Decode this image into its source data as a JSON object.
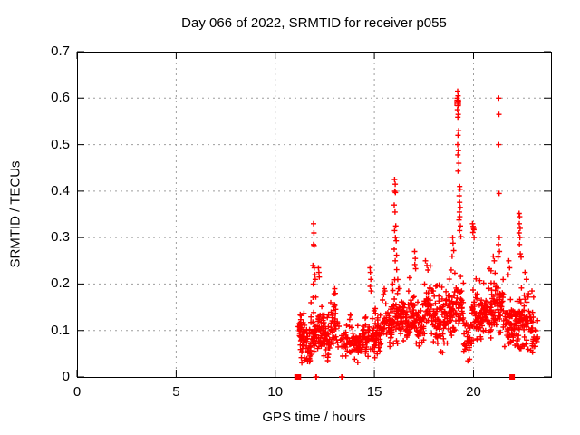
{
  "title": "Day 066 of 2022, SRMTID for receiver p055",
  "xlabel": "GPS time / hours",
  "ylabel": "SRMTID / TECUs",
  "chart_data": {
    "type": "scatter",
    "title": "Day 066 of 2022, SRMTID for receiver p055",
    "xlabel": "GPS time / hours",
    "ylabel": "SRMTID / TECUs",
    "marker": "plus",
    "marker_color": "#ff0000",
    "grid": true,
    "grid_style": "dotted",
    "grid_color": "#9e9e9e",
    "background": "#ffffff",
    "xlim": [
      0,
      23.91
    ],
    "ylim": [
      0,
      0.7
    ],
    "xticks": [
      0,
      5,
      10,
      15,
      20
    ],
    "yticks": [
      0,
      0.1,
      0.2,
      0.3,
      0.4,
      0.5,
      0.6,
      0.7
    ],
    "xtick_labels": [
      "0",
      "5",
      "10",
      "15",
      "20"
    ],
    "ytick_labels": [
      "0",
      "0.1",
      "0.2",
      "0.3",
      "0.4",
      "0.5",
      "0.6",
      "0.7"
    ],
    "data_extent_note": "no data before hour 11.1; dense cloud of + markers from ~11.2 to ~23.3 hours, mostly 0.03-0.25 TECUs, with narrow spikes listed in outlier_points",
    "outlier_points": [
      [
        11.9,
        0.24
      ],
      [
        11.92,
        0.2
      ],
      [
        11.93,
        0.33
      ],
      [
        11.93,
        0.285
      ],
      [
        11.95,
        0.31
      ],
      [
        11.96,
        0.283
      ],
      [
        11.97,
        0.235
      ],
      [
        12.0,
        0.22
      ],
      [
        12.02,
        0.21
      ],
      [
        12.18,
        0.235
      ],
      [
        12.2,
        0.225
      ],
      [
        12.22,
        0.215
      ],
      [
        13.0,
        0.19
      ],
      [
        13.03,
        0.18
      ],
      [
        14.78,
        0.235
      ],
      [
        14.8,
        0.225
      ],
      [
        14.82,
        0.21
      ],
      [
        14.79,
        0.195
      ],
      [
        14.83,
        0.185
      ],
      [
        15.5,
        0.19
      ],
      [
        15.53,
        0.185
      ],
      [
        16.02,
        0.425
      ],
      [
        16.05,
        0.415
      ],
      [
        16.03,
        0.4
      ],
      [
        16.06,
        0.397
      ],
      [
        16.0,
        0.37
      ],
      [
        16.04,
        0.355
      ],
      [
        16.08,
        0.325
      ],
      [
        16.02,
        0.315
      ],
      [
        16.06,
        0.3
      ],
      [
        16.1,
        0.293
      ],
      [
        16.0,
        0.275
      ],
      [
        16.12,
        0.262
      ],
      [
        16.05,
        0.25
      ],
      [
        17.03,
        0.27
      ],
      [
        17.06,
        0.255
      ],
      [
        17.04,
        0.242
      ],
      [
        17.08,
        0.233
      ],
      [
        17.58,
        0.25
      ],
      [
        17.65,
        0.24
      ],
      [
        17.7,
        0.23
      ],
      [
        18.95,
        0.3
      ],
      [
        18.97,
        0.288
      ],
      [
        19.0,
        0.272
      ],
      [
        18.92,
        0.26
      ],
      [
        19.2,
        0.615
      ],
      [
        19.22,
        0.605
      ],
      [
        19.18,
        0.6
      ],
      [
        19.24,
        0.594
      ],
      [
        19.2,
        0.589
      ],
      [
        19.22,
        0.584
      ],
      [
        19.19,
        0.575
      ],
      [
        19.23,
        0.565
      ],
      [
        19.21,
        0.559
      ],
      [
        19.25,
        0.53
      ],
      [
        19.22,
        0.52
      ],
      [
        19.2,
        0.5
      ],
      [
        19.24,
        0.487
      ],
      [
        19.21,
        0.478
      ],
      [
        19.26,
        0.46
      ],
      [
        19.22,
        0.443
      ],
      [
        19.3,
        0.41
      ],
      [
        19.32,
        0.404
      ],
      [
        19.28,
        0.39
      ],
      [
        19.3,
        0.376
      ],
      [
        19.33,
        0.365
      ],
      [
        19.29,
        0.355
      ],
      [
        19.31,
        0.345
      ],
      [
        19.27,
        0.338
      ],
      [
        19.34,
        0.325
      ],
      [
        19.3,
        0.315
      ],
      [
        19.36,
        0.302
      ],
      [
        19.95,
        0.33
      ],
      [
        19.98,
        0.324
      ],
      [
        20.0,
        0.32
      ],
      [
        20.02,
        0.317
      ],
      [
        19.97,
        0.311
      ],
      [
        20.03,
        0.3
      ],
      [
        21.0,
        0.26
      ],
      [
        21.05,
        0.25
      ],
      [
        21.27,
        0.6
      ],
      [
        21.28,
        0.565
      ],
      [
        21.27,
        0.5
      ],
      [
        21.29,
        0.395
      ],
      [
        21.3,
        0.3
      ],
      [
        21.26,
        0.285
      ],
      [
        21.31,
        0.27
      ],
      [
        21.78,
        0.25
      ],
      [
        21.82,
        0.235
      ],
      [
        21.75,
        0.22
      ],
      [
        22.3,
        0.352
      ],
      [
        22.33,
        0.345
      ],
      [
        22.31,
        0.33
      ],
      [
        22.35,
        0.32
      ],
      [
        22.3,
        0.31
      ],
      [
        22.34,
        0.3
      ],
      [
        22.32,
        0.285
      ],
      [
        22.36,
        0.265
      ],
      [
        22.4,
        0.258
      ],
      [
        22.6,
        0.225
      ],
      [
        22.67,
        0.21
      ],
      [
        22.95,
        0.185
      ]
    ],
    "zero_squares": [
      11.1,
      11.17,
      21.95
    ],
    "zero_crosses": [
      12.05,
      12.08,
      13.35,
      13.37
    ],
    "open_squares": [
      [
        19.2,
        0.59
      ]
    ],
    "clusters_format": "[x_start, x_end, count, y_min, y_typical, y_max] - dense cloud regions, individual points not resolvable",
    "point_clusters": [
      [
        11.15,
        11.45,
        45,
        0.03,
        0.09,
        0.16
      ],
      [
        11.45,
        11.8,
        40,
        0.02,
        0.07,
        0.13
      ],
      [
        11.8,
        12.1,
        30,
        0.04,
        0.09,
        0.18
      ],
      [
        12.1,
        12.45,
        40,
        0.05,
        0.1,
        0.19
      ],
      [
        12.45,
        12.8,
        35,
        0.03,
        0.08,
        0.14
      ],
      [
        12.8,
        13.15,
        35,
        0.05,
        0.1,
        0.19
      ],
      [
        13.15,
        13.55,
        12,
        0.03,
        0.07,
        0.11
      ],
      [
        13.55,
        13.95,
        30,
        0.04,
        0.08,
        0.14
      ],
      [
        13.95,
        14.35,
        35,
        0.03,
        0.065,
        0.12
      ],
      [
        14.35,
        14.75,
        35,
        0.04,
        0.08,
        0.16
      ],
      [
        14.75,
        15.15,
        35,
        0.04,
        0.08,
        0.15
      ],
      [
        15.15,
        15.55,
        35,
        0.05,
        0.1,
        0.19
      ],
      [
        15.55,
        15.95,
        40,
        0.06,
        0.11,
        0.22
      ],
      [
        15.95,
        16.3,
        35,
        0.07,
        0.13,
        0.24
      ],
      [
        16.3,
        16.7,
        40,
        0.07,
        0.12,
        0.21
      ],
      [
        16.7,
        17.1,
        40,
        0.08,
        0.13,
        0.23
      ],
      [
        17.1,
        17.5,
        35,
        0.06,
        0.11,
        0.18
      ],
      [
        17.5,
        17.9,
        40,
        0.08,
        0.14,
        0.24
      ],
      [
        17.9,
        18.3,
        40,
        0.06,
        0.12,
        0.21
      ],
      [
        18.3,
        18.7,
        35,
        0.05,
        0.11,
        0.2
      ],
      [
        18.7,
        19.1,
        40,
        0.08,
        0.14,
        0.26
      ],
      [
        19.1,
        19.5,
        35,
        0.09,
        0.15,
        0.27
      ],
      [
        19.5,
        19.9,
        30,
        0.03,
        0.08,
        0.15
      ],
      [
        19.9,
        20.3,
        40,
        0.07,
        0.13,
        0.23
      ],
      [
        20.3,
        20.7,
        45,
        0.08,
        0.13,
        0.22
      ],
      [
        20.7,
        21.1,
        45,
        0.08,
        0.14,
        0.24
      ],
      [
        21.1,
        21.5,
        40,
        0.09,
        0.15,
        0.26
      ],
      [
        21.5,
        21.9,
        40,
        0.06,
        0.11,
        0.19
      ],
      [
        21.9,
        22.3,
        40,
        0.05,
        0.1,
        0.17
      ],
      [
        22.3,
        22.7,
        40,
        0.05,
        0.11,
        0.2
      ],
      [
        22.7,
        23.05,
        30,
        0.05,
        0.1,
        0.18
      ],
      [
        23.05,
        23.35,
        10,
        0.05,
        0.09,
        0.13
      ]
    ],
    "seed": 20220660
  }
}
